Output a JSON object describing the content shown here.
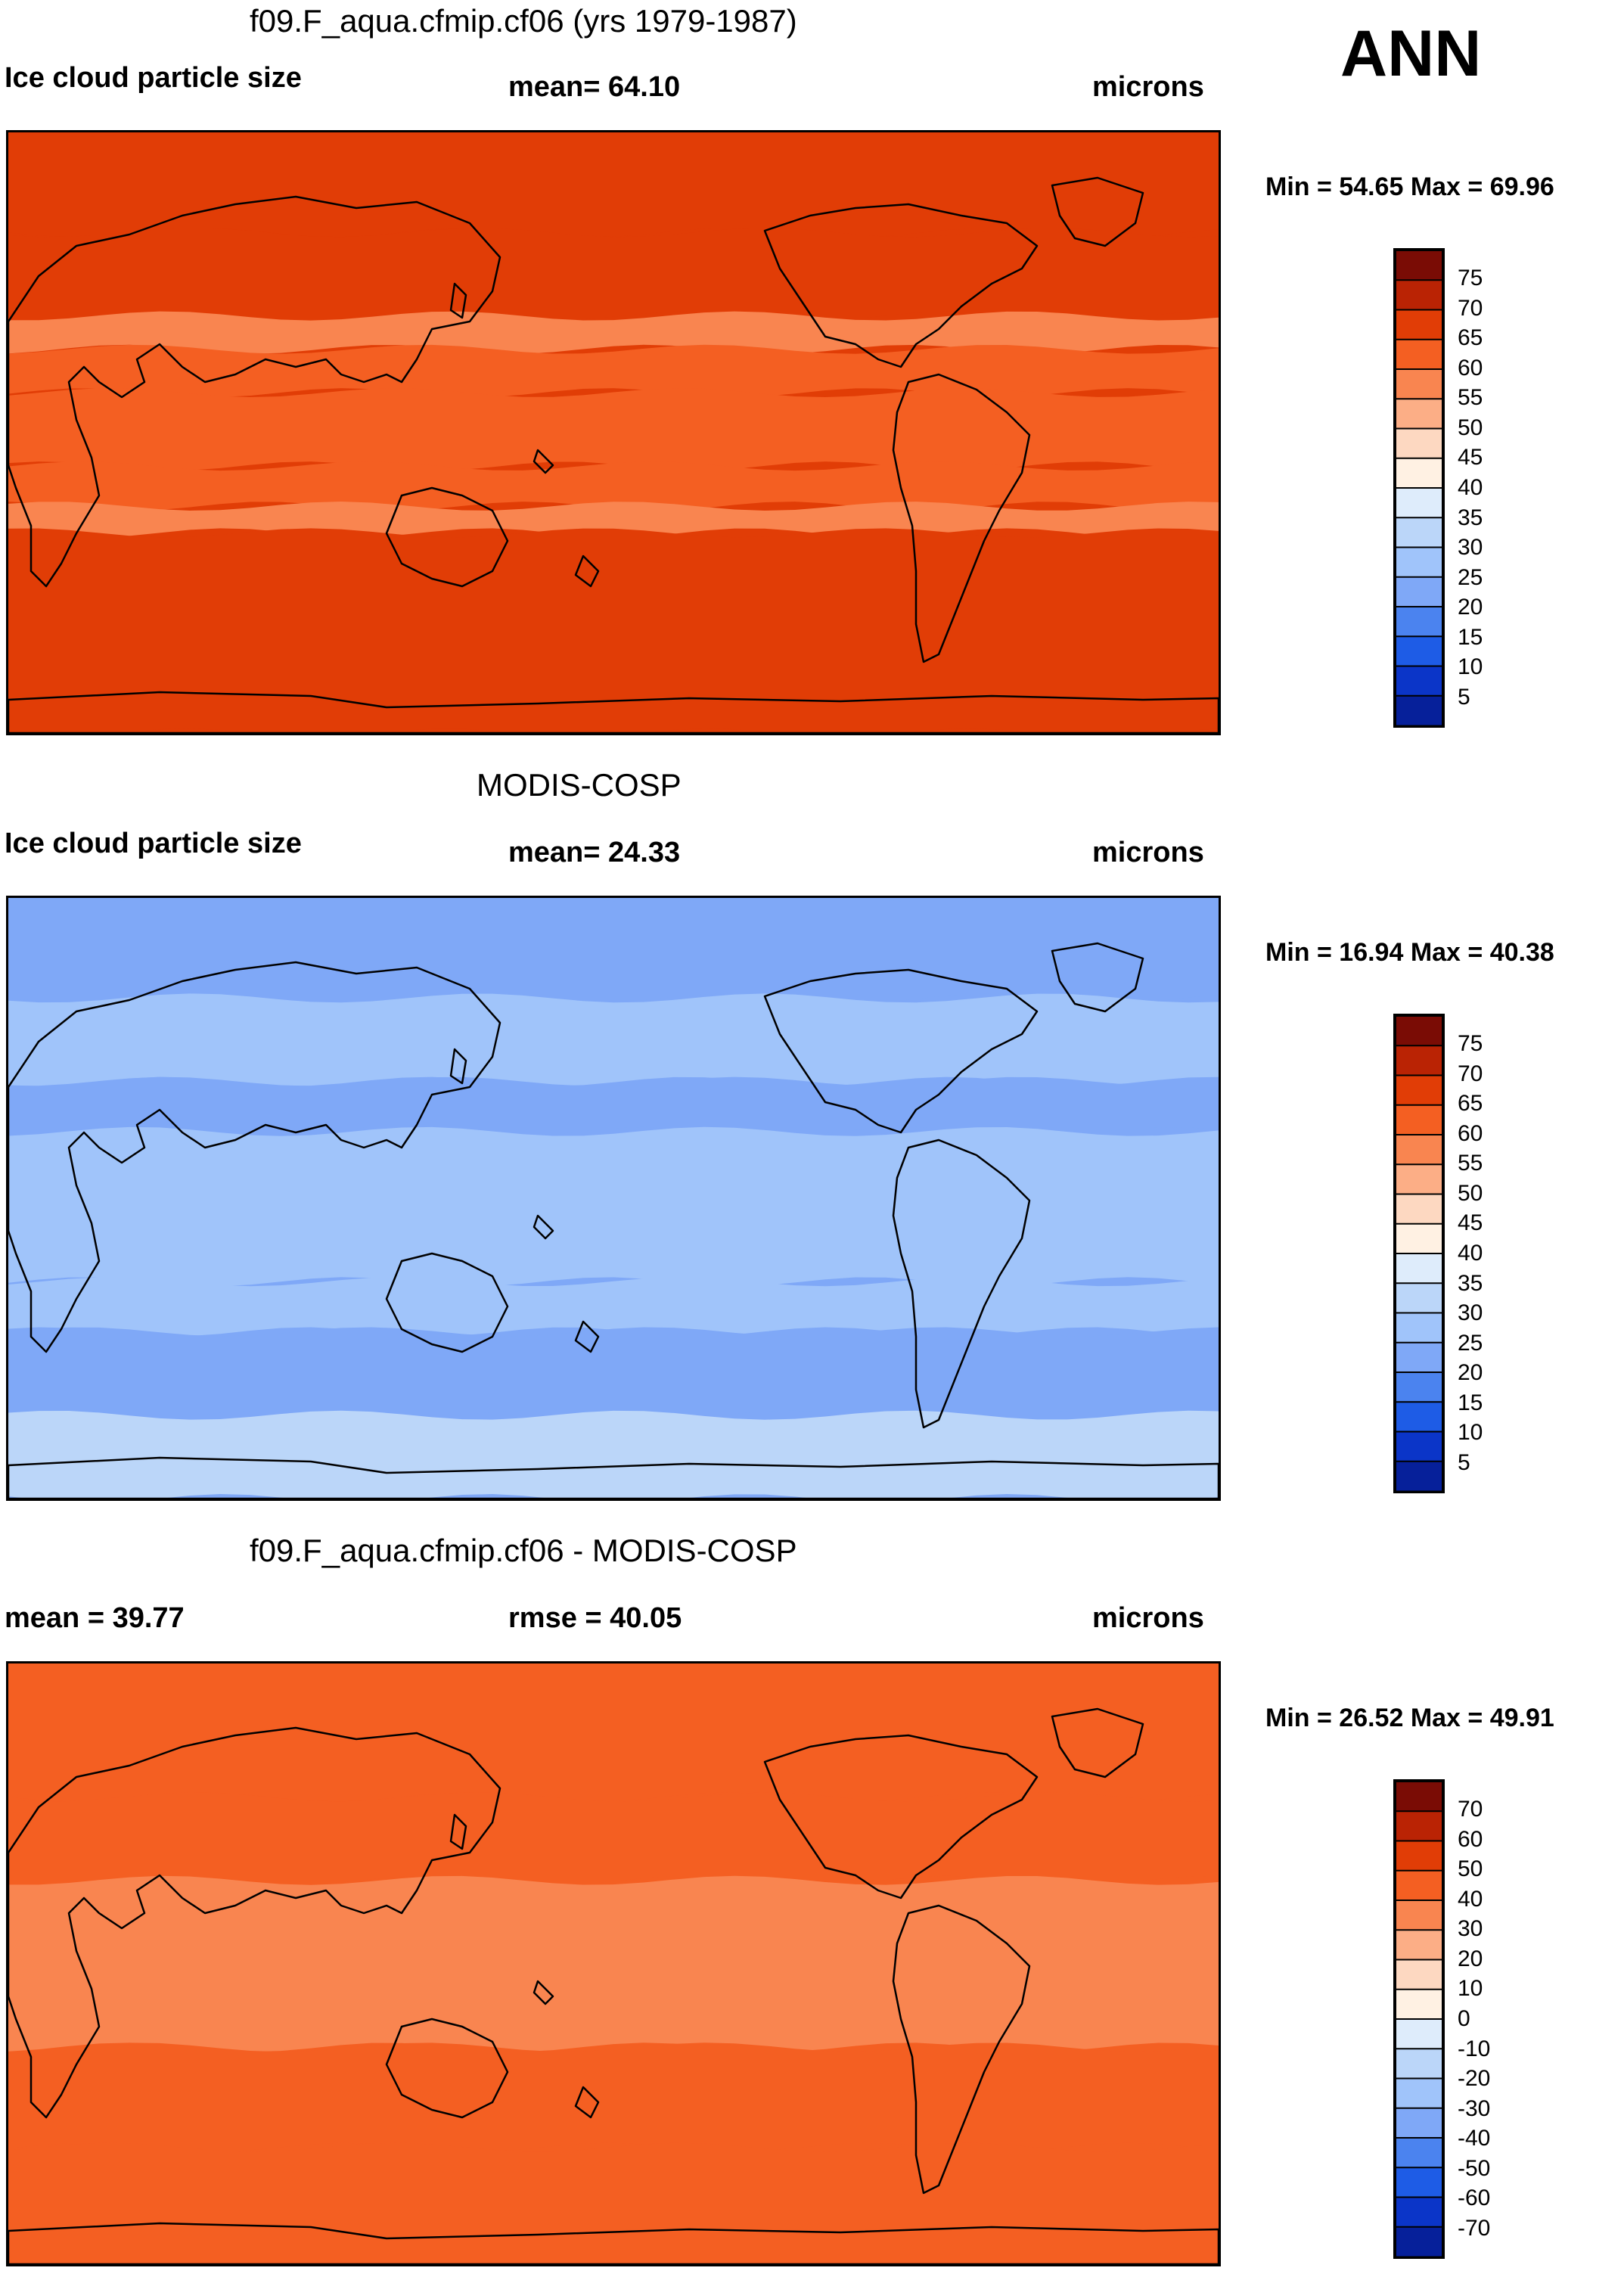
{
  "season": "ANN",
  "units_label": "microns",
  "colors": {
    "warm_scale": [
      "#7a0c05",
      "#ba2304",
      "#e13d06",
      "#f45f22",
      "#f98550",
      "#fcae86",
      "#fdd8c1",
      "#fff1e3"
    ],
    "cool_scale": [
      "#deecfb",
      "#bbd6f9",
      "#a0c4fa",
      "#7fa8f7",
      "#4b83ef",
      "#1e5ce6",
      "#0b35c8",
      "#06209a",
      "#040b6e"
    ]
  },
  "panels": [
    {
      "id": "model",
      "title": "f09.F_aqua.cfmip.cf06 (yrs 1979-1987)",
      "left_label": "Ice cloud particle size",
      "center_label": "mean=  64.10",
      "right_label": "microns",
      "minmax": "Min =  54.65 Max =  69.96",
      "colorbar_labels": [
        "75",
        "70",
        "65",
        "60",
        "55",
        "50",
        "45",
        "40",
        "35",
        "30",
        "25",
        "20",
        "15",
        "10",
        "5"
      ]
    },
    {
      "id": "obs",
      "title": "MODIS-COSP",
      "left_label": "Ice cloud particle size",
      "center_label": "mean=  24.33",
      "right_label": "microns",
      "minmax": "Min =  16.94 Max =  40.38",
      "colorbar_labels": [
        "75",
        "70",
        "65",
        "60",
        "55",
        "50",
        "45",
        "40",
        "35",
        "30",
        "25",
        "20",
        "15",
        "10",
        "5"
      ]
    },
    {
      "id": "diff",
      "title": "f09.F_aqua.cfmip.cf06 - MODIS-COSP",
      "left_label": "mean =  39.77",
      "center_label": "rmse =  40.05",
      "right_label": "microns",
      "minmax": "Min =  26.52 Max =  49.91",
      "colorbar_labels": [
        "70",
        "60",
        "50",
        "40",
        "30",
        "20",
        "10",
        "0",
        "-10",
        "-20",
        "-30",
        "-40",
        "-50",
        "-60",
        "-70"
      ]
    }
  ],
  "chart_data": [
    {
      "type": "heatmap",
      "title": "f09.F_aqua.cfmip.cf06 (yrs 1979-1987)",
      "variable": "Ice cloud particle size",
      "units": "microns",
      "mean": 64.1,
      "min": 54.65,
      "max": 69.96,
      "colorbar_levels": [
        5,
        10,
        15,
        20,
        25,
        30,
        35,
        40,
        45,
        50,
        55,
        60,
        65,
        70,
        75
      ],
      "zonal_bands_lat_value": [
        {
          "lat": [
            60,
            90
          ],
          "value": 67.5
        },
        {
          "lat": [
            35,
            60
          ],
          "value": 67.5
        },
        {
          "lat": [
            25,
            35
          ],
          "value": 57.5
        },
        {
          "lat": [
            12,
            25
          ],
          "value": 62.5
        },
        {
          "lat": [
            -10,
            12
          ],
          "value": 62.5
        },
        {
          "lat": [
            -22,
            -10
          ],
          "value": 62.5
        },
        {
          "lat": [
            -30,
            -22
          ],
          "value": 57.5
        },
        {
          "lat": [
            -90,
            -30
          ],
          "value": 67.5
        }
      ]
    },
    {
      "type": "heatmap",
      "title": "MODIS-COSP",
      "variable": "Ice cloud particle size",
      "units": "microns",
      "mean": 24.33,
      "min": 16.94,
      "max": 40.38,
      "colorbar_levels": [
        5,
        10,
        15,
        20,
        25,
        30,
        35,
        40,
        45,
        50,
        55,
        60,
        65,
        70,
        75
      ],
      "zonal_bands_lat_value": [
        {
          "lat": [
            60,
            90
          ],
          "value": 22.5
        },
        {
          "lat": [
            35,
            60
          ],
          "value": 27.5
        },
        {
          "lat": [
            20,
            35
          ],
          "value": 22.5
        },
        {
          "lat": [
            -25,
            20
          ],
          "value": 27.5
        },
        {
          "lat": [
            -40,
            -25
          ],
          "value": 27.5
        },
        {
          "lat": [
            -65,
            -40
          ],
          "value": 22.5
        },
        {
          "lat": [
            -90,
            -65
          ],
          "value": 32.5
        }
      ]
    },
    {
      "type": "heatmap",
      "title": "f09.F_aqua.cfmip.cf06 - MODIS-COSP",
      "units": "microns",
      "mean": 39.77,
      "rmse": 40.05,
      "min": 26.52,
      "max": 49.91,
      "colorbar_levels": [
        -70,
        -60,
        -50,
        -40,
        -30,
        -20,
        -10,
        0,
        10,
        20,
        30,
        40,
        50,
        60,
        70
      ],
      "zonal_bands_lat_value": [
        {
          "lat": [
            50,
            90
          ],
          "value": 45
        },
        {
          "lat": [
            25,
            50
          ],
          "value": 45
        },
        {
          "lat": [
            -25,
            25
          ],
          "value": 35
        },
        {
          "lat": [
            -55,
            -25
          ],
          "value": 45
        },
        {
          "lat": [
            -90,
            -55
          ],
          "value": 45
        }
      ]
    }
  ]
}
